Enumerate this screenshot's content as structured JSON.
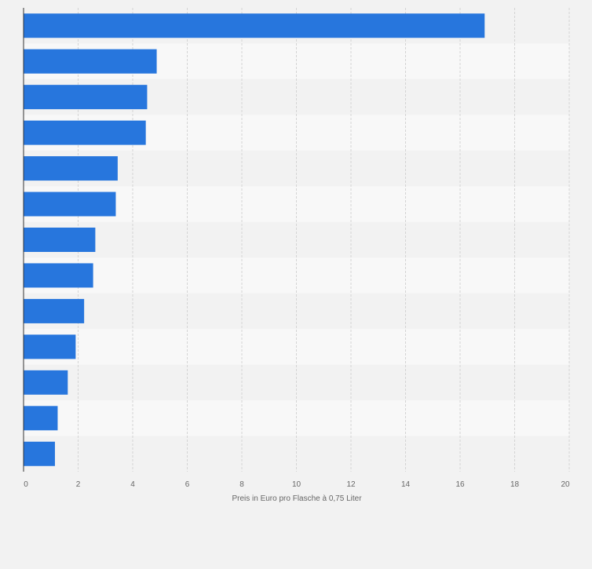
{
  "chart_data": {
    "type": "bar",
    "orientation": "horizontal",
    "categories": [
      "",
      "",
      "",
      "",
      "",
      "",
      "",
      "",
      "",
      "",
      "",
      "",
      ""
    ],
    "values": [
      16.9,
      4.88,
      4.53,
      4.48,
      3.45,
      3.38,
      2.63,
      2.55,
      2.22,
      1.91,
      1.62,
      1.25,
      1.15
    ],
    "xlabel": "Preis in Euro pro Flasche à 0,75 Liter",
    "ylabel": "",
    "xlim": [
      0,
      20
    ],
    "xticks": [
      "0",
      "2",
      "4",
      "6",
      "8",
      "10",
      "12",
      "14",
      "16",
      "18",
      "20"
    ],
    "grid": "vertical dashed",
    "legend": "none",
    "colors": {
      "bar": "#2776dd",
      "background": "#f2f2f2",
      "band_light": "#f8f8f8",
      "band_dark": "#f2f2f2",
      "gridline": "#d4d4d4",
      "axis": "#333333",
      "text": "#666666"
    }
  }
}
